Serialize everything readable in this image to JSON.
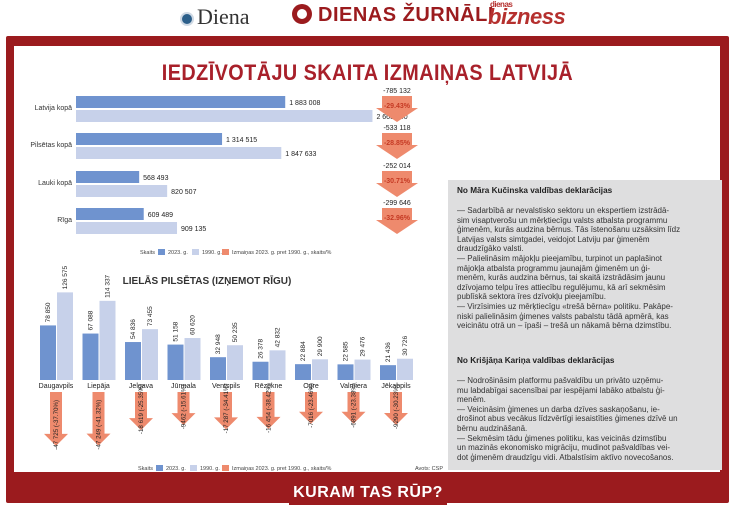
{
  "logos": {
    "diena": "Diena",
    "zurnali": "DIENAS ŽURNĀLI",
    "bizness_small": "dienas",
    "bizness": "bizness"
  },
  "title": "IEDZĪVOTĀJU SKAITA IZMAIŅAS LATVIJĀ",
  "colors": {
    "frame": "#9b1b1e",
    "bar2023": "#6f93cf",
    "bar1990": "#c7d1ea",
    "change": "#ee8a6d",
    "pct": "#c53a24"
  },
  "chart_data": [
    {
      "type": "bar",
      "orientation": "horizontal",
      "categories": [
        "Latvija kopā",
        "Pilsētas kopā",
        "Lauki kopā",
        "Rīga"
      ],
      "series": [
        {
          "name": "2023. g.",
          "values": [
            1883008,
            1314515,
            568493,
            609489
          ],
          "labels": [
            "1 883 008",
            "1 314 515",
            "568 493",
            "609 489"
          ]
        },
        {
          "name": "1990. g.",
          "values": [
            2668140,
            1847633,
            820507,
            909135
          ],
          "labels": [
            "2 668 140",
            "1 847 633",
            "820 507",
            "909 135"
          ]
        }
      ],
      "change": {
        "name": "Izmaiņas 2023. g. pret 1990. g., skaits/%",
        "values": [
          -785132,
          -533118,
          -252014,
          -299646
        ],
        "labels": [
          "-785 132",
          "-533 118",
          "-252 014",
          "-299 646"
        ],
        "pct": [
          "-29.43%",
          "-28.85%",
          "-30.71%",
          "-32.96%"
        ]
      },
      "legend_prefix": "Skaits"
    },
    {
      "type": "bar",
      "orientation": "vertical",
      "title": "LIELĀS PILSĒTAS (IZŅEMOT RĪGU)",
      "categories": [
        "Daugavpils",
        "Liepāja",
        "Jelgava",
        "Jūrmala",
        "Ventspils",
        "Rēzekne",
        "Ogre",
        "Valmiera",
        "Jēkabpils"
      ],
      "series": [
        {
          "name": "2023. g.",
          "values": [
            78850,
            67088,
            54836,
            51158,
            32948,
            26378,
            22884,
            22585,
            21436
          ],
          "labels": [
            "78 850",
            "67 088",
            "54 836",
            "51 158",
            "32 948",
            "26 378",
            "22 884",
            "22 585",
            "21 436"
          ]
        },
        {
          "name": "1990. g.",
          "values": [
            126575,
            114337,
            73455,
            60620,
            50235,
            42832,
            29900,
            29476,
            30726
          ],
          "labels": [
            "126 575",
            "114 337",
            "73 455",
            "60 620",
            "50 235",
            "42 832",
            "29 900",
            "29 476",
            "30 726"
          ]
        }
      ],
      "change": {
        "name": "Izmaiņas 2023. g. pret 1990. g., skaits/%",
        "labels": [
          "-47 725 (-37.70%)",
          "-47 249 (-41.32%)",
          "-18 619 (-25.35%)",
          "-9462 (-15.61%)",
          "-17 287 (-34.41%)",
          "-16 454 (-38.42%)",
          "-7016 (-23.46%)",
          "-6891 (-23.38%)",
          "-9290 (-30.23%)"
        ],
        "values": [
          -47725,
          -47249,
          -18619,
          -9462,
          -17287,
          -16454,
          -7016,
          -6891,
          -9290
        ]
      },
      "legend_prefix": "Skaits",
      "source": "Avots: CSP"
    }
  ],
  "declarations": [
    {
      "title": "No Māra Kučinska valdības deklarācijas",
      "body": "— Sadarbībā ar nevalstisko sektoru un ekspertiem izstrādā-\nsim visaptverošu un mērķtiecīgu valsts atbalsta programmu\nģimenēm, kurās audzina bērnus. Tās īstenošanu uzsāksim līdz\nLatvijas valsts simtgadei, veidojot Latviju par ģimenēm\ndraudzīgāko valsti.\n— Palielināsim mājokļu pieejamību, turpinot un paplašinot\nmājokļa atbalsta programmu jaunajām ģimenēm un ģi-\nmenēm, kurās audzina bērnus, tai skaitā izstrādāsim jaunu\ndzīvojamo telpu īres attiecību regulējumu, kā arī sekmēsim\npublīskā sektora īres dzīvokļu pieejamību.\n— Virzīsimies uz mērķtiecīgu «trešā bērna» politiku. Pakāpe-\nniski palielināsim ģimenes valsts pabalstu tādā apmērā, kas\nveicinātu otrā un – īpaši – trešā un nākamā bērna dzimstību."
    },
    {
      "title": "No Krišjāņa Kariņa valdības deklarācijas",
      "body": "— Nodrošināsim platformu pašvaldību un privāto uzņēmu-\nmu labdabīgai sacensībai par iespējami labāko atbalstu ģi-\nmenēm.\n— Veicināsim ģimenes un darba dzīves saskaņošanu, ie-\ndrošinot abus vecākus līdzvērtīgi iesaistīties ģimenes dzīvē un\nbērnu audzināšanā.\n— Sekmēsim tādu ģimenes politiku, kas veicinās dzimstību\nun mazinās ekonomisko migrāciju, mudinot pašvaldības vei-\ndot ģimenēm draudzīgu vidi. Atbalstīsim aktīvo novecošanos."
    }
  ],
  "banner": "KURAM TAS RŪP?"
}
